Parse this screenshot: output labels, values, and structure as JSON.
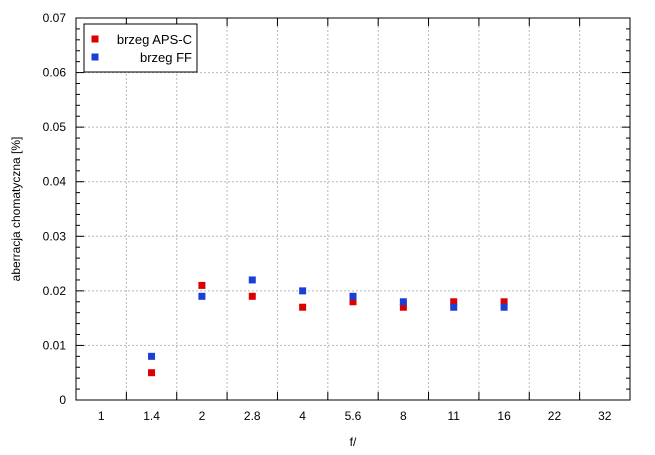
{
  "chart_data": {
    "type": "scatter",
    "xlabel": "f/",
    "ylabel": "aberracja chomatyczna [%]",
    "categories": [
      "1",
      "1.4",
      "2",
      "2.8",
      "4",
      "5.6",
      "8",
      "11",
      "16",
      "22",
      "32"
    ],
    "ylim": [
      0,
      0.07
    ],
    "yticks": [
      "0",
      "0.01",
      "0.02",
      "0.03",
      "0.04",
      "0.05",
      "0.06",
      "0.07"
    ],
    "grid": true,
    "legend_position": "top-left",
    "series": [
      {
        "name": "brzeg APS-C",
        "color": "#dd0000",
        "marker": "square",
        "points": [
          {
            "x": "1.4",
            "y": 0.005
          },
          {
            "x": "2",
            "y": 0.021
          },
          {
            "x": "2.8",
            "y": 0.019
          },
          {
            "x": "4",
            "y": 0.017
          },
          {
            "x": "5.6",
            "y": 0.018
          },
          {
            "x": "8",
            "y": 0.017
          },
          {
            "x": "11",
            "y": 0.018
          },
          {
            "x": "16",
            "y": 0.018
          }
        ]
      },
      {
        "name": "brzeg FF",
        "color": "#1a3fd6",
        "marker": "square",
        "points": [
          {
            "x": "1.4",
            "y": 0.008
          },
          {
            "x": "2",
            "y": 0.019
          },
          {
            "x": "2.8",
            "y": 0.022
          },
          {
            "x": "4",
            "y": 0.02
          },
          {
            "x": "5.6",
            "y": 0.019
          },
          {
            "x": "8",
            "y": 0.018
          },
          {
            "x": "11",
            "y": 0.017
          },
          {
            "x": "16",
            "y": 0.017
          }
        ]
      }
    ]
  }
}
